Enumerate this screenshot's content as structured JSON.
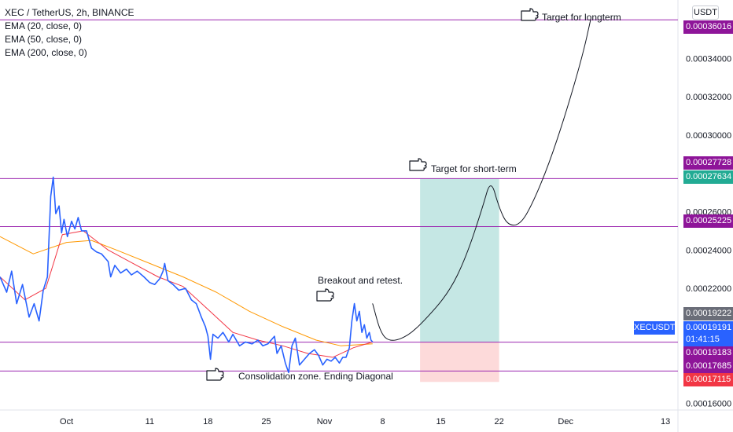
{
  "legend": {
    "symbol": "XEC / TetherUS, 2h, BINANCE",
    "ema20": "EMA (20, close, 0)",
    "ema50": "EMA (50, close, 0)",
    "ema200": "EMA (200, close, 0)"
  },
  "currency": "USDT",
  "price_tags": {
    "t1": "0.00036016",
    "t2": "0.00027728",
    "t3": "0.00027634",
    "t4": "0.00025225",
    "t5": "0.00019222",
    "t6": "0.00019191",
    "t6_timer": "01:41:15",
    "t7": "0.00019183",
    "t8": "0.00017685",
    "t9": "0.00017115"
  },
  "symbol_label": "XECUSDT",
  "annotations": {
    "longterm": "Target for longterm",
    "shortterm": "Target for short-term",
    "breakout": "Breakout and retest.",
    "consolidation": "Consolidation zone. Ending Diagonal"
  },
  "colors": {
    "price": "#2962ff",
    "ema20": "#f23645",
    "ema50": "#ff9800",
    "hline": "#9c27b0",
    "target_zone": "#b2dfdb",
    "stop_zone": "#fdd6d6"
  },
  "chart_data": {
    "type": "line",
    "title": "XEC / TetherUS, 2h, BINANCE",
    "y_ticks": [
      "0.00034000",
      "0.00032000",
      "0.00030000",
      "0.00026000",
      "0.00024000",
      "0.00022000",
      "0.00016000"
    ],
    "x_ticks": [
      {
        "label": "Oct",
        "day": 0
      },
      {
        "label": "11",
        "day": 10
      },
      {
        "label": "18",
        "day": 17
      },
      {
        "label": "25",
        "day": 24
      },
      {
        "label": "Nov",
        "day": 31
      },
      {
        "label": "8",
        "day": 38
      },
      {
        "label": "15",
        "day": 45
      },
      {
        "label": "22",
        "day": 52
      },
      {
        "label": "Dec",
        "day": 60
      },
      {
        "label": "13",
        "day": 72
      }
    ],
    "ylim": [
      0.0001565,
      0.0003705
    ],
    "xlim": [
      -8,
      73.5
    ],
    "horizontal_levels": [
      0.00036016,
      0.00027728,
      0.00025225,
      0.00019191,
      0.00017685
    ],
    "series": [
      {
        "name": "XECUSDT",
        "points": [
          [
            -8,
            0.000226
          ],
          [
            -7.2,
            0.000218
          ],
          [
            -6.6,
            0.000229
          ],
          [
            -6.0,
            0.000212
          ],
          [
            -5.3,
            0.000222
          ],
          [
            -4.5,
            0.000205
          ],
          [
            -3.9,
            0.000212
          ],
          [
            -3.3,
            0.000203
          ],
          [
            -2.8,
            0.000219
          ],
          [
            -2.3,
            0.000226
          ],
          [
            -1.9,
            0.000268
          ],
          [
            -1.6,
            0.000278
          ],
          [
            -1.3,
            0.000259
          ],
          [
            -0.9,
            0.000263
          ],
          [
            -0.6,
            0.000249
          ],
          [
            -0.3,
            0.000256
          ],
          [
            0.1,
            0.000247
          ],
          [
            0.6,
            0.000255
          ],
          [
            1.0,
            0.000251
          ],
          [
            1.4,
            0.000257
          ],
          [
            1.8,
            0.00025
          ],
          [
            2.4,
            0.00025
          ],
          [
            3.0,
            0.000241
          ],
          [
            3.6,
            0.000239
          ],
          [
            4.2,
            0.000238
          ],
          [
            5.0,
            0.000234
          ],
          [
            5.3,
            0.000226
          ],
          [
            5.8,
            0.000232
          ],
          [
            6.5,
            0.000228
          ],
          [
            7.2,
            0.00023
          ],
          [
            7.8,
            0.000227
          ],
          [
            8.5,
            0.000229
          ],
          [
            9.3,
            0.000226
          ],
          [
            10.0,
            0.000223
          ],
          [
            10.6,
            0.000222
          ],
          [
            11.2,
            0.000225
          ],
          [
            11.6,
            0.000229
          ],
          [
            11.8,
            0.000233
          ],
          [
            12.2,
            0.000224
          ],
          [
            12.8,
            0.000222
          ],
          [
            13.5,
            0.000219
          ],
          [
            14.3,
            0.00022
          ],
          [
            15.0,
            0.000214
          ],
          [
            15.6,
            0.000212
          ],
          [
            16.2,
            0.000205
          ],
          [
            16.7,
            0.0002
          ],
          [
            17.0,
            0.000195
          ],
          [
            17.3,
            0.000183
          ],
          [
            17.6,
            0.000196
          ],
          [
            18.2,
            0.000194
          ],
          [
            18.8,
            0.000197
          ],
          [
            19.5,
            0.000192
          ],
          [
            20.0,
            0.000196
          ],
          [
            20.8,
            0.00019
          ],
          [
            21.5,
            0.000192
          ],
          [
            22.3,
            0.000191
          ],
          [
            23.0,
            0.000193
          ],
          [
            23.6,
            0.00019
          ],
          [
            24.2,
            0.000191
          ],
          [
            25.0,
            0.000195
          ],
          [
            25.3,
            0.000186
          ],
          [
            25.8,
            0.00019
          ],
          [
            26.3,
            0.000181
          ],
          [
            26.7,
            0.000176
          ],
          [
            27.1,
            0.00019
          ],
          [
            27.5,
            0.000194
          ],
          [
            28.0,
            0.00018
          ],
          [
            28.6,
            0.000183
          ],
          [
            29.2,
            0.000186
          ],
          [
            29.8,
            0.000188
          ],
          [
            30.3,
            0.000185
          ],
          [
            30.8,
            0.00018
          ],
          [
            31.3,
            0.000183
          ],
          [
            31.8,
            0.000182
          ],
          [
            32.3,
            0.000184
          ],
          [
            32.8,
            0.000181
          ],
          [
            33.2,
            0.000184
          ],
          [
            33.6,
            0.000184
          ],
          [
            34.0,
            0.000189
          ],
          [
            34.3,
            0.000203
          ],
          [
            34.6,
            0.000212
          ],
          [
            34.9,
            0.000203
          ],
          [
            35.2,
            0.000208
          ],
          [
            35.5,
            0.000197
          ],
          [
            35.8,
            0.000201
          ],
          [
            36.1,
            0.000194
          ],
          [
            36.4,
            0.000197
          ],
          [
            36.6,
            0.000193
          ],
          [
            36.8,
            0.000192
          ]
        ]
      },
      {
        "name": "EMA (20, close, 0)",
        "points": [
          [
            -8,
            0.000226
          ],
          [
            -5,
            0.000214
          ],
          [
            -2.5,
            0.00022
          ],
          [
            -0.5,
            0.000248
          ],
          [
            2,
            0.00025
          ],
          [
            5,
            0.00024
          ],
          [
            8,
            0.000233
          ],
          [
            11,
            0.000226
          ],
          [
            14,
            0.000221
          ],
          [
            17,
            0.000209
          ],
          [
            20,
            0.000197
          ],
          [
            23,
            0.000193
          ],
          [
            26,
            0.00019
          ],
          [
            29,
            0.000186
          ],
          [
            32,
            0.000184
          ],
          [
            34.5,
            0.000189
          ],
          [
            36.8,
            0.000192
          ]
        ]
      },
      {
        "name": "EMA (50, close, 0)",
        "points": [
          [
            -8,
            0.000247
          ],
          [
            -4,
            0.000238
          ],
          [
            0,
            0.000244
          ],
          [
            3,
            0.000245
          ],
          [
            6,
            0.00024
          ],
          [
            10,
            0.000233
          ],
          [
            14,
            0.000226
          ],
          [
            18,
            0.000218
          ],
          [
            22,
            0.000208
          ],
          [
            26,
            0.0002
          ],
          [
            30,
            0.000193
          ],
          [
            33,
            0.00019
          ],
          [
            36.8,
            0.000191
          ]
        ]
      }
    ],
    "projection": [
      [
        36.8,
        0.000212
      ],
      [
        37.8,
        0.000196
      ],
      [
        39,
        0.000192
      ],
      [
        41,
        0.000195
      ],
      [
        43,
        0.000203
      ],
      [
        46,
        0.000218
      ],
      [
        48,
        0.000236
      ],
      [
        50,
        0.000262
      ],
      [
        51,
        0.0002773
      ],
      [
        52,
        0.000262
      ],
      [
        53,
        0.000253
      ],
      [
        54.5,
        0.000253
      ],
      [
        56,
        0.000264
      ],
      [
        58,
        0.000285
      ],
      [
        60,
        0.000311
      ],
      [
        62,
        0.000341
      ],
      [
        63,
        0.0003601
      ]
    ],
    "position": {
      "x_start": 42.5,
      "x_end": 52,
      "entry": 0.00019191,
      "target": 0.00027728,
      "stop": 0.00017115
    }
  }
}
